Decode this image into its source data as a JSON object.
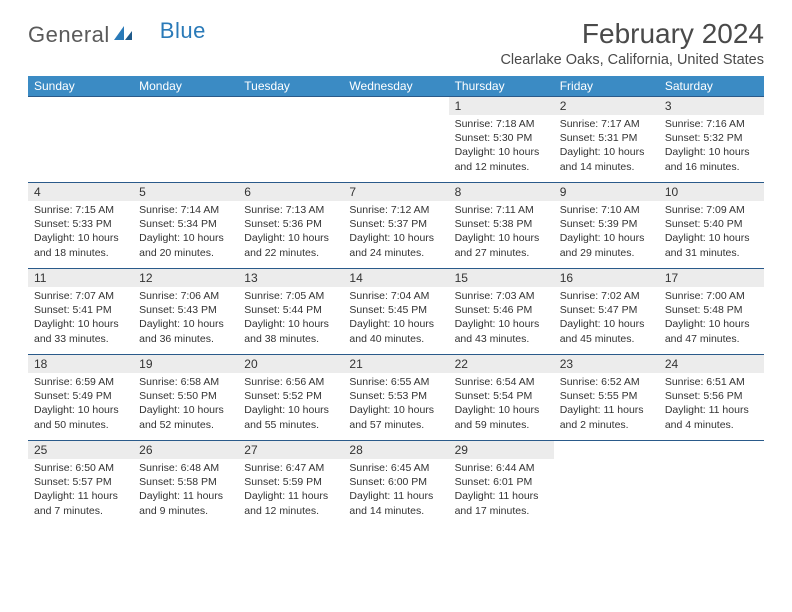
{
  "logo": {
    "text1": "General",
    "text2": "Blue"
  },
  "header": {
    "month_title": "February 2024",
    "location": "Clearlake Oaks, California, United States"
  },
  "colors": {
    "header_bg": "#3b8bc4",
    "header_text": "#ffffff",
    "daynum_bg": "#ececec",
    "row_border": "#2a5a8a",
    "logo_blue": "#2a7ab8",
    "text": "#333333"
  },
  "day_names": [
    "Sunday",
    "Monday",
    "Tuesday",
    "Wednesday",
    "Thursday",
    "Friday",
    "Saturday"
  ],
  "weeks": [
    [
      null,
      null,
      null,
      null,
      {
        "n": "1",
        "sr": "Sunrise: 7:18 AM",
        "ss": "Sunset: 5:30 PM",
        "dl": "Daylight: 10 hours and 12 minutes."
      },
      {
        "n": "2",
        "sr": "Sunrise: 7:17 AM",
        "ss": "Sunset: 5:31 PM",
        "dl": "Daylight: 10 hours and 14 minutes."
      },
      {
        "n": "3",
        "sr": "Sunrise: 7:16 AM",
        "ss": "Sunset: 5:32 PM",
        "dl": "Daylight: 10 hours and 16 minutes."
      }
    ],
    [
      {
        "n": "4",
        "sr": "Sunrise: 7:15 AM",
        "ss": "Sunset: 5:33 PM",
        "dl": "Daylight: 10 hours and 18 minutes."
      },
      {
        "n": "5",
        "sr": "Sunrise: 7:14 AM",
        "ss": "Sunset: 5:34 PM",
        "dl": "Daylight: 10 hours and 20 minutes."
      },
      {
        "n": "6",
        "sr": "Sunrise: 7:13 AM",
        "ss": "Sunset: 5:36 PM",
        "dl": "Daylight: 10 hours and 22 minutes."
      },
      {
        "n": "7",
        "sr": "Sunrise: 7:12 AM",
        "ss": "Sunset: 5:37 PM",
        "dl": "Daylight: 10 hours and 24 minutes."
      },
      {
        "n": "8",
        "sr": "Sunrise: 7:11 AM",
        "ss": "Sunset: 5:38 PM",
        "dl": "Daylight: 10 hours and 27 minutes."
      },
      {
        "n": "9",
        "sr": "Sunrise: 7:10 AM",
        "ss": "Sunset: 5:39 PM",
        "dl": "Daylight: 10 hours and 29 minutes."
      },
      {
        "n": "10",
        "sr": "Sunrise: 7:09 AM",
        "ss": "Sunset: 5:40 PM",
        "dl": "Daylight: 10 hours and 31 minutes."
      }
    ],
    [
      {
        "n": "11",
        "sr": "Sunrise: 7:07 AM",
        "ss": "Sunset: 5:41 PM",
        "dl": "Daylight: 10 hours and 33 minutes."
      },
      {
        "n": "12",
        "sr": "Sunrise: 7:06 AM",
        "ss": "Sunset: 5:43 PM",
        "dl": "Daylight: 10 hours and 36 minutes."
      },
      {
        "n": "13",
        "sr": "Sunrise: 7:05 AM",
        "ss": "Sunset: 5:44 PM",
        "dl": "Daylight: 10 hours and 38 minutes."
      },
      {
        "n": "14",
        "sr": "Sunrise: 7:04 AM",
        "ss": "Sunset: 5:45 PM",
        "dl": "Daylight: 10 hours and 40 minutes."
      },
      {
        "n": "15",
        "sr": "Sunrise: 7:03 AM",
        "ss": "Sunset: 5:46 PM",
        "dl": "Daylight: 10 hours and 43 minutes."
      },
      {
        "n": "16",
        "sr": "Sunrise: 7:02 AM",
        "ss": "Sunset: 5:47 PM",
        "dl": "Daylight: 10 hours and 45 minutes."
      },
      {
        "n": "17",
        "sr": "Sunrise: 7:00 AM",
        "ss": "Sunset: 5:48 PM",
        "dl": "Daylight: 10 hours and 47 minutes."
      }
    ],
    [
      {
        "n": "18",
        "sr": "Sunrise: 6:59 AM",
        "ss": "Sunset: 5:49 PM",
        "dl": "Daylight: 10 hours and 50 minutes."
      },
      {
        "n": "19",
        "sr": "Sunrise: 6:58 AM",
        "ss": "Sunset: 5:50 PM",
        "dl": "Daylight: 10 hours and 52 minutes."
      },
      {
        "n": "20",
        "sr": "Sunrise: 6:56 AM",
        "ss": "Sunset: 5:52 PM",
        "dl": "Daylight: 10 hours and 55 minutes."
      },
      {
        "n": "21",
        "sr": "Sunrise: 6:55 AM",
        "ss": "Sunset: 5:53 PM",
        "dl": "Daylight: 10 hours and 57 minutes."
      },
      {
        "n": "22",
        "sr": "Sunrise: 6:54 AM",
        "ss": "Sunset: 5:54 PM",
        "dl": "Daylight: 10 hours and 59 minutes."
      },
      {
        "n": "23",
        "sr": "Sunrise: 6:52 AM",
        "ss": "Sunset: 5:55 PM",
        "dl": "Daylight: 11 hours and 2 minutes."
      },
      {
        "n": "24",
        "sr": "Sunrise: 6:51 AM",
        "ss": "Sunset: 5:56 PM",
        "dl": "Daylight: 11 hours and 4 minutes."
      }
    ],
    [
      {
        "n": "25",
        "sr": "Sunrise: 6:50 AM",
        "ss": "Sunset: 5:57 PM",
        "dl": "Daylight: 11 hours and 7 minutes."
      },
      {
        "n": "26",
        "sr": "Sunrise: 6:48 AM",
        "ss": "Sunset: 5:58 PM",
        "dl": "Daylight: 11 hours and 9 minutes."
      },
      {
        "n": "27",
        "sr": "Sunrise: 6:47 AM",
        "ss": "Sunset: 5:59 PM",
        "dl": "Daylight: 11 hours and 12 minutes."
      },
      {
        "n": "28",
        "sr": "Sunrise: 6:45 AM",
        "ss": "Sunset: 6:00 PM",
        "dl": "Daylight: 11 hours and 14 minutes."
      },
      {
        "n": "29",
        "sr": "Sunrise: 6:44 AM",
        "ss": "Sunset: 6:01 PM",
        "dl": "Daylight: 11 hours and 17 minutes."
      },
      null,
      null
    ]
  ]
}
